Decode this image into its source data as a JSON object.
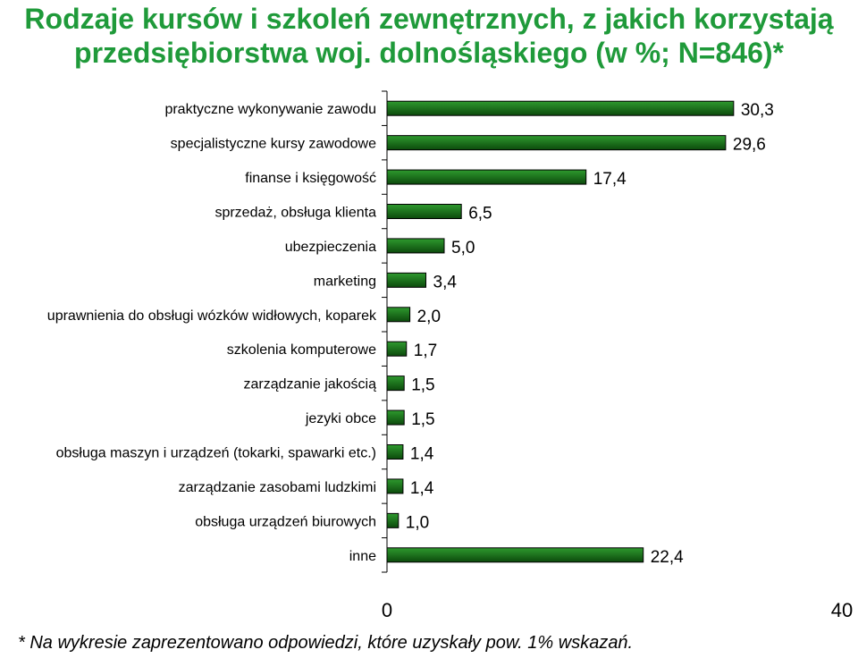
{
  "chart_data": {
    "type": "bar",
    "orientation": "horizontal",
    "title": [
      "Rodzaje kursów i szkoleń zewnętrznych, z jakich korzystają",
      "przedsiębiorstwa woj. dolnośląskiego (w %; N=846)*"
    ],
    "categories": [
      "praktyczne wykonywanie zawodu",
      "specjalistyczne kursy zawodowe",
      "finanse i księgowość",
      "sprzedaż, obsługa klienta",
      "ubezpieczenia",
      "marketing",
      "uprawnienia do obsługi wózków widłowych, koparek",
      "szkolenia komputerowe",
      "zarządzanie jakością",
      "jezyki obce",
      "obsługa maszyn i urządzeń (tokarki, spawarki etc.)",
      "zarządzanie zasobami ludzkimi",
      "obsługa urządzeń biurowych",
      "inne"
    ],
    "values": [
      30.3,
      29.6,
      17.4,
      6.5,
      5.0,
      3.4,
      2.0,
      1.7,
      1.5,
      1.5,
      1.4,
      1.4,
      1.0,
      22.4
    ],
    "value_labels": [
      "30,3",
      "29,6",
      "17,4",
      "6,5",
      "5,0",
      "3,4",
      "2,0",
      "1,7",
      "1,5",
      "1,5",
      "1,4",
      "1,4",
      "1,0",
      "22,4"
    ],
    "xlim": [
      0,
      40
    ],
    "xticks": [
      "0",
      "40"
    ],
    "grid": false,
    "bar_color": "#1a7a1a",
    "bar_color_dark": "#0a3f0a",
    "footnote": "* Na wykresie zaprezentowano odpowiedzi, które uzyskały pow. 1% wskazań."
  },
  "colors": {
    "title": "#1f9a3a"
  }
}
